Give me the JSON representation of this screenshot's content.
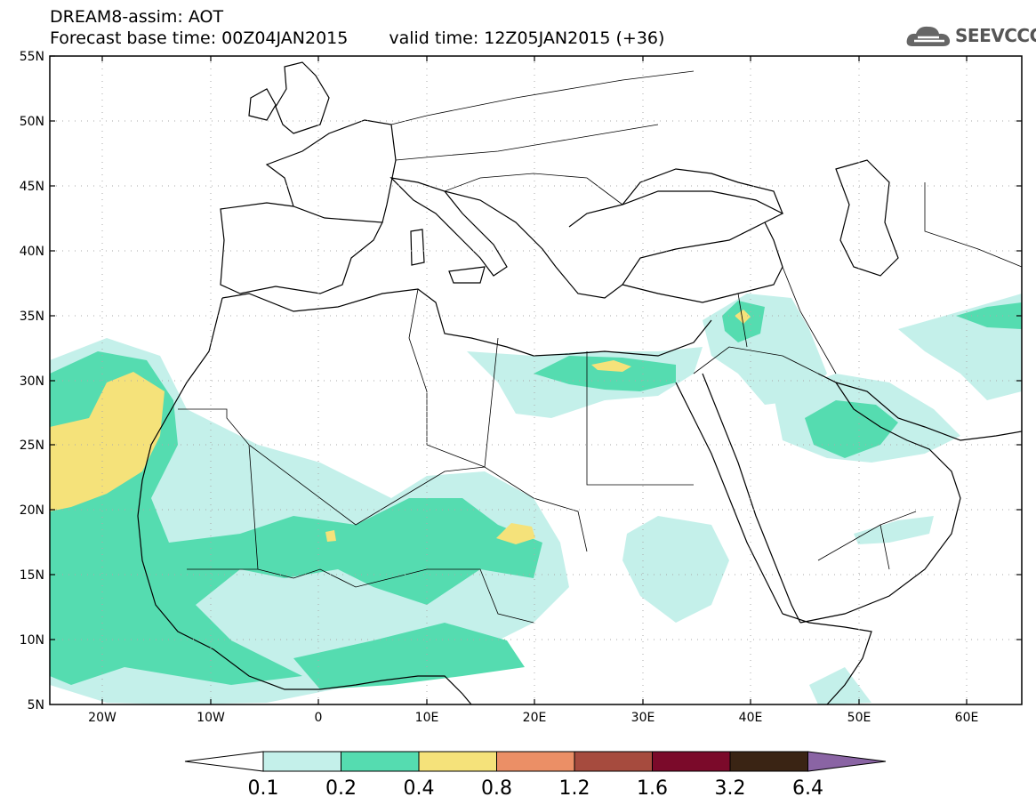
{
  "header": {
    "line1": "DREAM8-assim: AOT",
    "base_time": "Forecast base time: 00Z04JAN2015",
    "valid_time": "valid time: 12Z05JAN2015 (+36)"
  },
  "logo": {
    "text": "SEEVCCC",
    "icon": "cloud-icon"
  },
  "axes": {
    "lat_labels": [
      "55N",
      "50N",
      "45N",
      "40N",
      "35N",
      "30N",
      "25N",
      "20N",
      "15N",
      "10N",
      "5N"
    ],
    "lon_labels": [
      "20W",
      "10W",
      "0",
      "10E",
      "20E",
      "30E",
      "40E",
      "50E",
      "60E"
    ],
    "lat_range": [
      5,
      55
    ],
    "lon_range": [
      -25,
      65
    ]
  },
  "legend": {
    "labels": [
      "0.1",
      "0.2",
      "0.4",
      "0.8",
      "1.2",
      "1.6",
      "3.2",
      "6.4"
    ],
    "colors": [
      "#ffffff",
      "#c4f0ea",
      "#55dcb0",
      "#f5e27a",
      "#eb8f66",
      "#a64b3e",
      "#7b0a2a",
      "#3a2414",
      "#8a64a4"
    ]
  },
  "field_colors": {
    "low": "#c4f0ea",
    "mid": "#55dcb0",
    "high": "#f5e27a"
  }
}
